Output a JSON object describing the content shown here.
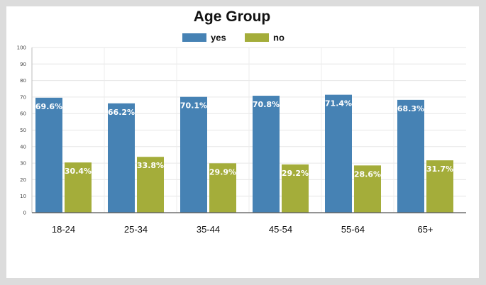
{
  "chart_data": {
    "type": "bar",
    "title": "Age Group",
    "xlabel": "",
    "ylabel": "",
    "ylim": [
      0,
      100
    ],
    "ytick_step": 10,
    "grid": true,
    "legend_position": "top",
    "categories": [
      "18-24",
      "25-34",
      "35-44",
      "45-54",
      "55-64",
      "65+"
    ],
    "series": [
      {
        "name": "yes",
        "color": "#4682b4",
        "values": [
          69.6,
          66.2,
          70.1,
          70.8,
          71.4,
          68.3
        ],
        "labels": [
          "69.6%",
          "66.2%",
          "70.1%",
          "70.8%",
          "71.4%",
          "68.3%"
        ]
      },
      {
        "name": "no",
        "color": "#a4ad3a",
        "values": [
          30.4,
          33.8,
          29.9,
          29.2,
          28.6,
          31.7
        ],
        "labels": [
          "30.4%",
          "33.8%",
          "29.9%",
          "29.2%",
          "28.6%",
          "31.7%"
        ]
      }
    ]
  }
}
